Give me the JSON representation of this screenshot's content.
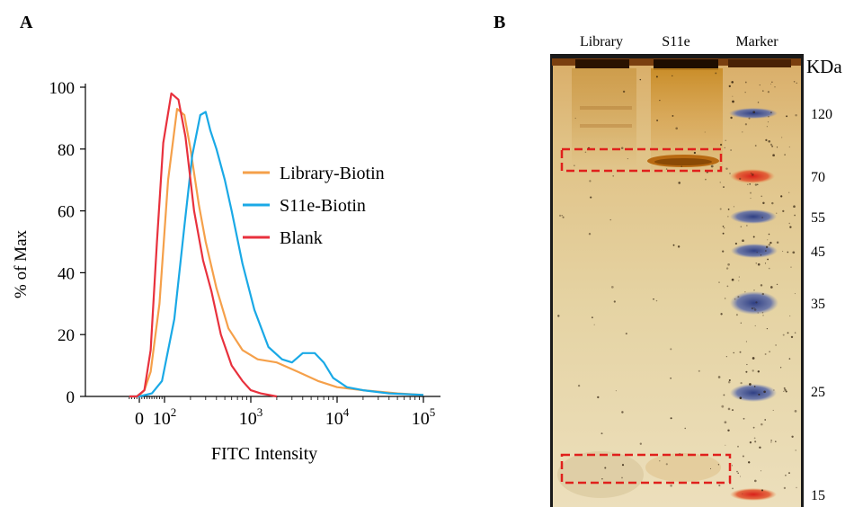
{
  "panel_a": {
    "letter": "A",
    "chart_data": {
      "type": "line",
      "xlabel": "FITC Intensity",
      "ylabel": "% of Max",
      "ylim": [
        0,
        100
      ],
      "yticks": [
        "0",
        "20",
        "40",
        "60",
        "80",
        "100"
      ],
      "xscale": "biexponential",
      "xticks": [
        "0",
        "10",
        "10",
        "10",
        "10"
      ],
      "xtick_exponents": [
        "",
        "2",
        "3",
        "4",
        "5"
      ],
      "legend": {
        "placement": "top-right"
      },
      "series": [
        {
          "name": "Library-Biotin",
          "color": "#f5a04a",
          "points": [
            [
              -40,
              0
            ],
            [
              -5,
              0
            ],
            [
              20,
              2
            ],
            [
              45,
              8
            ],
            [
              80,
              30
            ],
            [
              110,
              70
            ],
            [
              140,
              93
            ],
            [
              170,
              91
            ],
            [
              200,
              80
            ],
            [
              250,
              62
            ],
            [
              300,
              50
            ],
            [
              400,
              35
            ],
            [
              550,
              22
            ],
            [
              800,
              15
            ],
            [
              1200,
              12
            ],
            [
              2000,
              11
            ],
            [
              3500,
              8
            ],
            [
              6000,
              5
            ],
            [
              10000,
              3
            ],
            [
              20000,
              2
            ],
            [
              50000,
              1
            ],
            [
              100000,
              0.5
            ]
          ]
        },
        {
          "name": "S11e-Biotin",
          "color": "#1aa9e6",
          "points": [
            [
              -40,
              0
            ],
            [
              0,
              0
            ],
            [
              50,
              1
            ],
            [
              90,
              5
            ],
            [
              130,
              25
            ],
            [
              170,
              55
            ],
            [
              210,
              78
            ],
            [
              260,
              91
            ],
            [
              300,
              92
            ],
            [
              340,
              86
            ],
            [
              400,
              80
            ],
            [
              500,
              70
            ],
            [
              600,
              60
            ],
            [
              800,
              43
            ],
            [
              1100,
              28
            ],
            [
              1600,
              16
            ],
            [
              2300,
              12
            ],
            [
              3000,
              11
            ],
            [
              4000,
              14
            ],
            [
              5500,
              14
            ],
            [
              7000,
              11
            ],
            [
              9000,
              6
            ],
            [
              13000,
              3
            ],
            [
              20000,
              2
            ],
            [
              40000,
              1
            ],
            [
              100000,
              0.5
            ]
          ]
        },
        {
          "name": "Blank",
          "color": "#e8313d",
          "points": [
            [
              -40,
              0
            ],
            [
              -10,
              0
            ],
            [
              20,
              2
            ],
            [
              45,
              15
            ],
            [
              70,
              50
            ],
            [
              95,
              82
            ],
            [
              120,
              98
            ],
            [
              145,
              96
            ],
            [
              175,
              84
            ],
            [
              220,
              60
            ],
            [
              280,
              44
            ],
            [
              350,
              34
            ],
            [
              450,
              20
            ],
            [
              600,
              10
            ],
            [
              800,
              5
            ],
            [
              1000,
              2
            ],
            [
              1300,
              1
            ],
            [
              2000,
              0
            ]
          ]
        }
      ]
    }
  },
  "panel_b": {
    "letter": "B",
    "lanes": [
      "Library",
      "S11e",
      "Marker"
    ],
    "unit": "KDa",
    "markers": [
      "120",
      "70",
      "55",
      "45",
      "35",
      "25",
      "15"
    ]
  }
}
